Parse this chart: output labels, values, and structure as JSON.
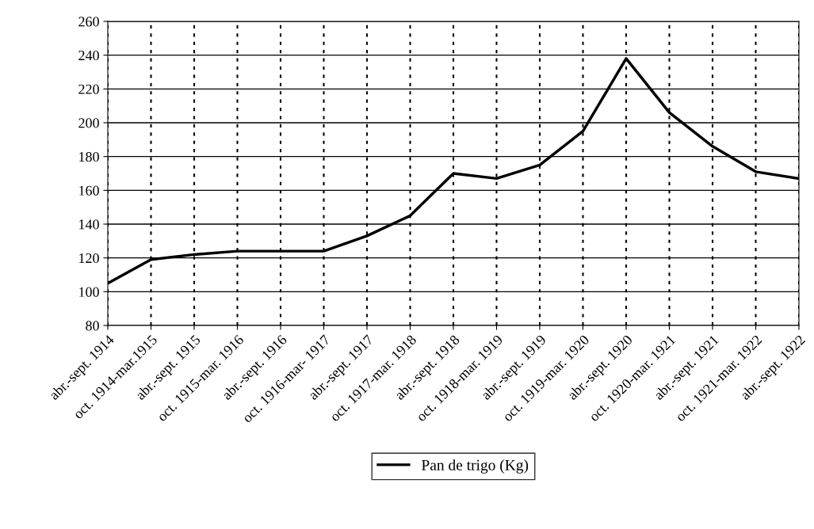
{
  "chart_data": {
    "type": "line",
    "categories": [
      "abr.-sept. 1914",
      "oct. 1914-mar.1915",
      "abr.-sept. 1915",
      "oct. 1915-mar. 1916",
      "abr.-sept. 1916",
      "oct. 1916-mar- 1917",
      "abr.-sept. 1917",
      "oct. 1917-mar. 1918",
      "abr.-sept. 1918",
      "oct. 1918-mar. 1919",
      "abr.-sept. 1919",
      "oct. 1919-mar. 1920",
      "abr.-sept. 1920",
      "oct. 1920-mar. 1921",
      "abr.-sept. 1921",
      "oct. 1921-mar. 1922",
      "abr.-sept. 1922"
    ],
    "series": [
      {
        "name": "Pan de trigo (Kg)",
        "color": "#000000",
        "values": [
          105,
          119,
          122,
          124,
          124,
          124,
          133,
          145,
          170,
          167,
          175,
          195,
          238,
          206,
          186,
          171,
          167
        ]
      }
    ],
    "ylim": [
      80,
      260
    ],
    "yticks": [
      80,
      100,
      120,
      140,
      160,
      180,
      200,
      220,
      240,
      260
    ],
    "grid": true,
    "legend": "bottom",
    "marker": "none",
    "line_style": "solid"
  }
}
